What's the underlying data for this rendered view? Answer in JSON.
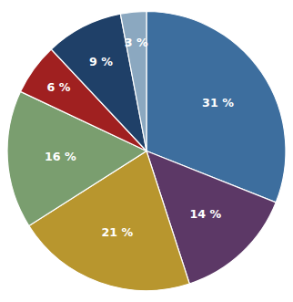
{
  "chart_data": {
    "type": "pie",
    "values": [
      31,
      14,
      21,
      16,
      6,
      9,
      3
    ],
    "value_labels": [
      "31 %",
      "14 %",
      "21 %",
      "16 %",
      "6 %",
      "9 %",
      "3 %"
    ],
    "colors": [
      "#3D6E9E",
      "#5C3866",
      "#B8962E",
      "#7A9E6F",
      "#A02020",
      "#1F4068",
      "#8BA8C0"
    ],
    "data_labels": true
  }
}
